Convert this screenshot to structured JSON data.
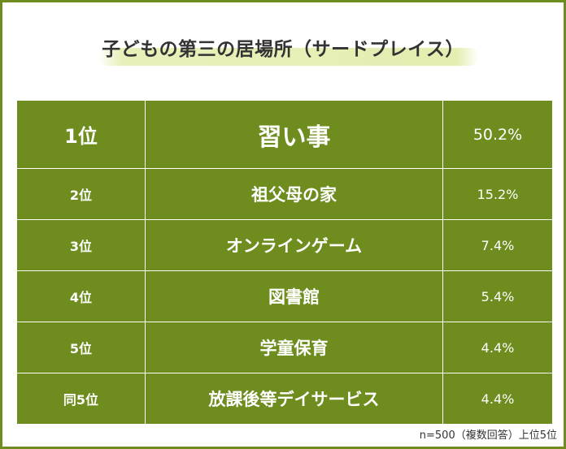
{
  "title": "子どもの第三の居場所（サードプレイス）",
  "rows": [
    {
      "rank": "1位",
      "item": "習い事",
      "percent": "50.2%"
    },
    {
      "rank": "2位",
      "item": "祖父母の家",
      "percent": "15.2%"
    },
    {
      "rank": "3位",
      "item": "オンラインゲーム",
      "percent": "7.4%"
    },
    {
      "rank": "4位",
      "item": "図書館",
      "percent": "5.4%"
    },
    {
      "rank": "5位",
      "item": "学童保育",
      "percent": "4.4%"
    },
    {
      "rank": "同5位",
      "item": "放課後等デイサービス",
      "percent": "4.4%"
    }
  ],
  "footnote": "n=500（複数回答）上位5位",
  "colors": {
    "accent_green": "#6e8d1e",
    "title_highlight": "#e4eeb0",
    "text_dark": "#333333"
  }
}
